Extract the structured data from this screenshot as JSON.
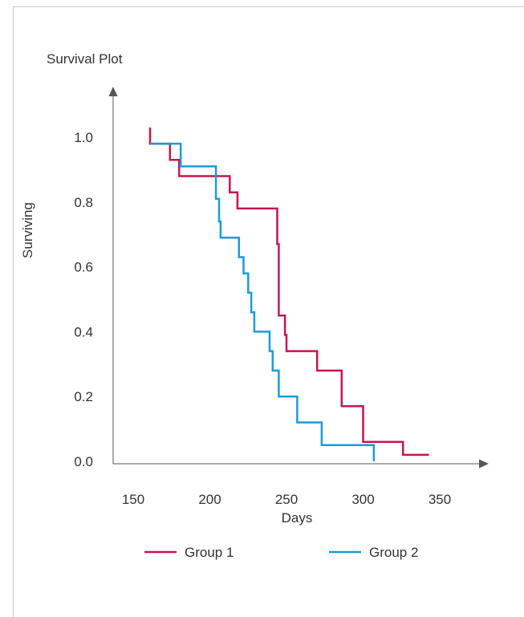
{
  "chart_data": {
    "type": "line",
    "title": "Survival Plot",
    "xlabel": "Days",
    "ylabel": "Surviving",
    "xlim": [
      140,
      375
    ],
    "ylim": [
      0,
      1.1
    ],
    "xticks": [
      150,
      200,
      250,
      300,
      350
    ],
    "yticks": [
      0.0,
      0.2,
      0.4,
      0.6,
      0.8,
      1.0
    ],
    "xtick_labels": [
      "150",
      "200",
      "250",
      "300",
      "350"
    ],
    "ytick_labels": [
      "0.0",
      "0.2",
      "0.4",
      "0.6",
      "0.8",
      "1.0"
    ],
    "legend_position": "bottom",
    "step": true,
    "series": [
      {
        "name": "Group 1",
        "color": "#c8144f",
        "x": [
          161,
          161,
          174,
          174,
          180,
          180,
          213,
          213,
          218,
          218,
          244,
          244,
          245,
          245,
          249,
          249,
          250,
          250,
          251,
          251,
          270,
          270,
          286,
          286,
          300,
          300,
          326,
          326,
          343
        ],
        "y": [
          1.03,
          0.98,
          0.98,
          0.93,
          0.93,
          0.88,
          0.88,
          0.83,
          0.83,
          0.78,
          0.78,
          0.67,
          0.67,
          0.45,
          0.45,
          0.39,
          0.39,
          0.34,
          0.34,
          0.34,
          0.34,
          0.28,
          0.28,
          0.17,
          0.17,
          0.06,
          0.06,
          0.02,
          0.02
        ]
      },
      {
        "name": "Group 2",
        "color": "#1a9cd8",
        "x": [
          161,
          161,
          181,
          181,
          204,
          204,
          206,
          206,
          207,
          207,
          219,
          219,
          222,
          222,
          225,
          225,
          227,
          227,
          229,
          229,
          231,
          231,
          239,
          239,
          241,
          241,
          245,
          245,
          257,
          257,
          273,
          273,
          307,
          307
        ],
        "y": [
          0.98,
          0.98,
          0.98,
          0.91,
          0.91,
          0.81,
          0.81,
          0.74,
          0.74,
          0.69,
          0.69,
          0.63,
          0.63,
          0.58,
          0.58,
          0.52,
          0.52,
          0.46,
          0.46,
          0.4,
          0.4,
          0.4,
          0.4,
          0.34,
          0.34,
          0.28,
          0.28,
          0.2,
          0.2,
          0.12,
          0.12,
          0.05,
          0.05,
          0.0
        ]
      }
    ]
  }
}
